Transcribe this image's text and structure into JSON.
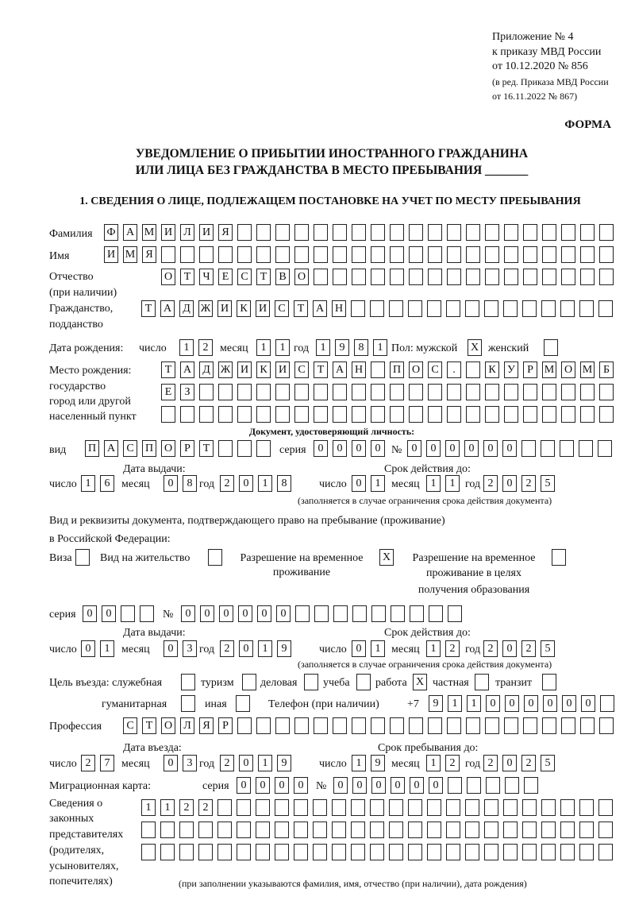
{
  "header": {
    "line1": "Приложение № 4",
    "line2": "к приказу МВД России",
    "line3": "от 10.12.2020 № 856",
    "line4": "(в ред. Приказа МВД России",
    "line5": "от 16.11.2022 № 867)",
    "form_label": "ФОРМА",
    "title1": "УВЕДОМЛЕНИЕ О ПРИБЫТИИ ИНОСТРАННОГО ГРАЖДАНИНА",
    "title2": "ИЛИ ЛИЦА БЕЗ ГРАЖДАНСТВА В МЕСТО ПРЕБЫВАНИЯ _______",
    "section1": "1. СВЕДЕНИЯ О ЛИЦЕ, ПОДЛЕЖАЩЕМ ПОСТАНОВКЕ НА УЧЕТ ПО МЕСТУ ПРЕБЫВАНИЯ"
  },
  "labels": {
    "surname": "Фамилия",
    "name": "Имя",
    "patronymic1": "Отчество",
    "patronymic2": "(при наличии)",
    "citizenship1": "Гражданство,",
    "citizenship2": "подданство",
    "birth_date": "Дата рождения:",
    "day": "число",
    "month": "месяц",
    "year": "год",
    "sex": "Пол: мужской",
    "female": "женский",
    "birthplace1": "Место рождения:",
    "birthplace2": "государство",
    "birthplace3": "город или другой",
    "birthplace4": "населенный пункт",
    "id_doc": "Документ, удостоверяющий личность:",
    "kind": "вид",
    "series": "серия",
    "number": "№",
    "issue_date": "Дата выдачи:",
    "valid_until": "Срок действия до:",
    "validity_note": "(заполняется в случае ограничения срока действия документа)",
    "right_doc1": "Вид и реквизиты документа, подтверждающего право на пребывание (проживание)",
    "right_doc2": "в Российской Федерации:",
    "visa": "Виза",
    "residence_permit": "Вид на жительство",
    "temp_residence1": "Разрешение на временное",
    "temp_residence2": "проживание",
    "temp_edu1": "Разрешение на временное",
    "temp_edu2": "проживание в целях",
    "temp_edu3": "получения образования",
    "purpose": "Цель въезда: служебная",
    "tourism": "туризм",
    "business": "деловая",
    "study": "учеба",
    "work": "работа",
    "private": "частная",
    "transit": "транзит",
    "humanitarian": "гуманитарная",
    "other": "иная",
    "phone": "Телефон (при наличии)",
    "phone_prefix": "+7",
    "profession": "Профессия",
    "entry_date": "Дата въезда:",
    "stay_until": "Срок пребывания до:",
    "migration_card": "Миграционная карта:",
    "reps1": "Сведения о",
    "reps2": "законных",
    "reps3": "представителях",
    "reps4": "(родителях,",
    "reps5": "усыновителях,",
    "reps6": "попечителях)",
    "reps_note": "(при заполнении указываются фамилия, имя, отчество (при наличии), дата рождения)"
  },
  "fields": {
    "surname": "ФАМИЛИЯ",
    "name": "ИМЯ",
    "patronymic": "ОТЧЕСТВО",
    "citizenship": "ТАДЖИКИСТАН",
    "birth_day": "12",
    "birth_month": "11",
    "birth_year": "1981",
    "sex_male": "X",
    "sex_female": "",
    "birthplace_1": "ТАДЖИКИСТАН ПОС. КУРМОМБ",
    "birthplace_2": "ЕЗ",
    "birthplace_3": "",
    "doc_kind": "ПАСПОРТ",
    "doc_series": "0000",
    "doc_number": "000000",
    "doc_issue_day": "16",
    "doc_issue_month": "08",
    "doc_issue_year": "2018",
    "doc_valid_day": "01",
    "doc_valid_month": "11",
    "doc_valid_year": "2025",
    "visa": "",
    "residence_permit": "",
    "temp_residence": "X",
    "temp_edu": "",
    "right_series": "00",
    "right_number": "000000",
    "right_issue_day": "01",
    "right_issue_month": "03",
    "right_issue_year": "2019",
    "right_valid_day": "01",
    "right_valid_month": "12",
    "right_valid_year": "2025",
    "purpose_official": "",
    "purpose_tourism": "",
    "purpose_business": "",
    "purpose_study": "",
    "purpose_work": "X",
    "purpose_private": "",
    "purpose_transit": "",
    "purpose_humanitarian": "",
    "purpose_other": "",
    "phone": "911000000",
    "profession": "СТОЛЯР",
    "entry_day": "27",
    "entry_month": "03",
    "entry_year": "2019",
    "stay_day": "19",
    "stay_month": "12",
    "stay_year": "2025",
    "mig_series": "0000",
    "mig_number": "000000",
    "reps_1": "1122",
    "reps_2": "",
    "reps_3": ""
  }
}
